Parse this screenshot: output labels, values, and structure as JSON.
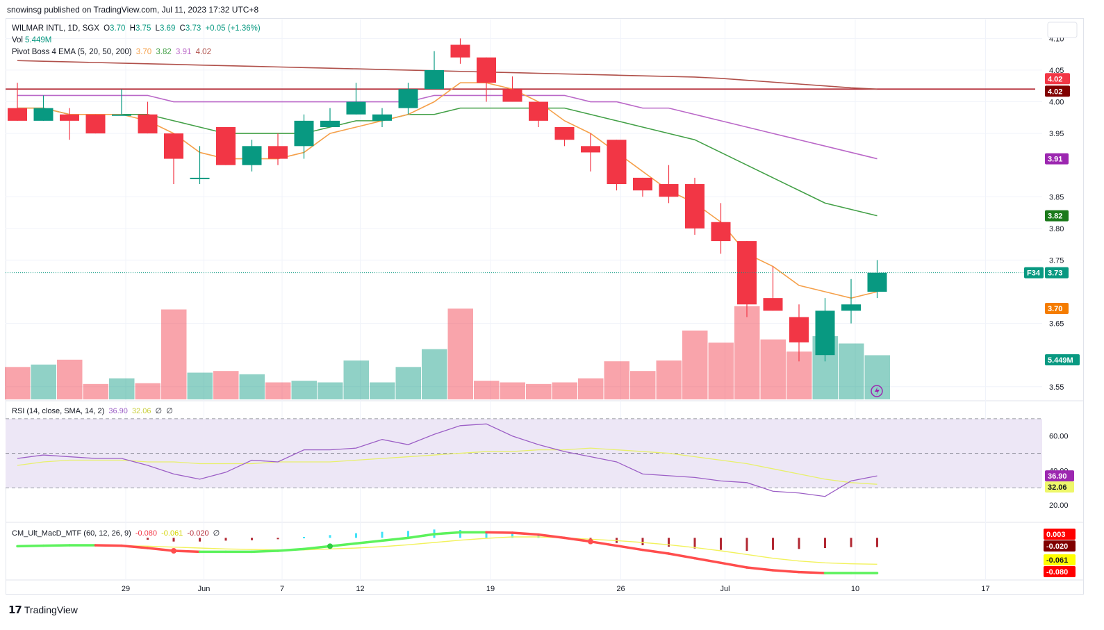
{
  "header": {
    "published": "snowinsg published on TradingView.com, Jul 11, 2023 17:32 UTC+8"
  },
  "legend": {
    "symbol": "WILMAR INTL, 1D, SGX",
    "o_label": "O",
    "o": "3.70",
    "h_label": "H",
    "h": "3.75",
    "l_label": "L",
    "l": "3.69",
    "c_label": "C",
    "c": "3.73",
    "change": "+0.05 (+1.36%)",
    "vol_label": "Vol",
    "vol": "5.449M",
    "ema_label": "Pivot Boss 4 EMA (5, 20, 50, 200)",
    "ema5": "3.70",
    "ema20": "3.82",
    "ema50": "3.91",
    "ema200": "4.02",
    "rsi_label": "RSI (14, close, SMA, 14, 2)",
    "rsi": "36.90",
    "rsi_ma": "32.06",
    "rsi_x1": "∅",
    "rsi_x2": "∅",
    "macd_label": "CM_Ult_MacD_MTF (60, 12, 26, 9)",
    "macd1": "-0.080",
    "macd2": "-0.061",
    "macd3": "-0.020",
    "macd_x": "∅"
  },
  "brand": {
    "name": "TradingView"
  },
  "colors": {
    "up": "#089981",
    "down": "#f23645",
    "ema5": "#f5a04a",
    "ema20": "#43a047",
    "ema50": "#ba68c8",
    "ema200": "#b0504a",
    "resistance": "#b22833",
    "rsi": "#9c5fc6",
    "rsi_ma": "#e8f06c",
    "rsi_band": "#ede7f6",
    "macd_up": "#5cf25c",
    "macd_down": "#ff4d4d",
    "macd_signal": "#f2f25c"
  },
  "chart_data": {
    "type": "candlestick",
    "price_ylim": [
      3.53,
      4.13
    ],
    "price_ticks": [
      "4.10",
      "4.05",
      "4.00",
      "3.95",
      "3.85",
      "3.80",
      "3.75",
      "3.65",
      "3.55"
    ],
    "x_ticks": [
      {
        "label": "29",
        "i": 4
      },
      {
        "label": "Jun",
        "i": 7
      },
      {
        "label": "7",
        "i": 10
      },
      {
        "label": "12",
        "i": 13
      },
      {
        "label": "19",
        "i": 18
      },
      {
        "label": "26",
        "i": 23
      },
      {
        "label": "Jul",
        "i": 27
      },
      {
        "label": "10",
        "i": 32
      },
      {
        "label": "17",
        "i": 37
      }
    ],
    "ohlc": [
      [
        3.99,
        4.03,
        3.97,
        3.97
      ],
      [
        3.97,
        4.01,
        3.97,
        3.99
      ],
      [
        3.98,
        3.99,
        3.94,
        3.97
      ],
      [
        3.98,
        3.98,
        3.95,
        3.95
      ],
      [
        3.98,
        4.02,
        3.98,
        3.98
      ],
      [
        3.98,
        4.0,
        3.95,
        3.95
      ],
      [
        3.95,
        3.95,
        3.87,
        3.91
      ],
      [
        3.88,
        3.93,
        3.87,
        3.88
      ],
      [
        3.96,
        3.96,
        3.9,
        3.9
      ],
      [
        3.9,
        3.94,
        3.89,
        3.93
      ],
      [
        3.93,
        3.95,
        3.9,
        3.91
      ],
      [
        3.93,
        3.98,
        3.91,
        3.97
      ],
      [
        3.96,
        3.99,
        3.96,
        3.97
      ],
      [
        3.98,
        4.03,
        3.98,
        4.0
      ],
      [
        3.97,
        3.99,
        3.96,
        3.98
      ],
      [
        3.99,
        4.03,
        3.98,
        4.02
      ],
      [
        4.02,
        4.08,
        4.02,
        4.05
      ],
      [
        4.09,
        4.1,
        4.06,
        4.07
      ],
      [
        4.07,
        4.07,
        4.0,
        4.03
      ],
      [
        4.02,
        4.04,
        4.0,
        4.0
      ],
      [
        4.0,
        4.0,
        3.96,
        3.97
      ],
      [
        3.96,
        3.96,
        3.93,
        3.94
      ],
      [
        3.93,
        3.95,
        3.89,
        3.92
      ],
      [
        3.94,
        3.94,
        3.86,
        3.87
      ],
      [
        3.88,
        3.88,
        3.85,
        3.86
      ],
      [
        3.87,
        3.9,
        3.84,
        3.85
      ],
      [
        3.87,
        3.88,
        3.79,
        3.8
      ],
      [
        3.81,
        3.84,
        3.76,
        3.78
      ],
      [
        3.78,
        3.78,
        3.66,
        3.68
      ],
      [
        3.69,
        3.74,
        3.67,
        3.67
      ],
      [
        3.66,
        3.68,
        3.59,
        3.62
      ],
      [
        3.6,
        3.69,
        3.59,
        3.67
      ],
      [
        3.67,
        3.72,
        3.65,
        3.68
      ],
      [
        3.7,
        3.75,
        3.69,
        3.73
      ]
    ],
    "volume_millions": [
      4.0,
      4.3,
      4.9,
      1.9,
      2.6,
      2.0,
      11.1,
      3.3,
      3.5,
      3.1,
      2.1,
      2.3,
      2.1,
      4.8,
      2.1,
      4.0,
      6.2,
      11.2,
      2.3,
      2.1,
      1.9,
      2.1,
      2.6,
      4.7,
      3.5,
      4.8,
      8.5,
      7.0,
      11.5,
      7.4,
      5.9,
      7.8,
      6.9,
      5.449
    ],
    "volume_max_millions": 12.0,
    "ema5": [
      3.99,
      3.99,
      3.98,
      3.98,
      3.98,
      3.97,
      3.95,
      3.92,
      3.91,
      3.91,
      3.91,
      3.92,
      3.95,
      3.96,
      3.97,
      3.98,
      4.0,
      4.03,
      4.03,
      4.02,
      4.0,
      3.97,
      3.95,
      3.92,
      3.89,
      3.86,
      3.84,
      3.81,
      3.76,
      3.74,
      3.71,
      3.7,
      3.69,
      3.7
    ],
    "ema20": [
      3.99,
      3.99,
      3.98,
      3.98,
      3.98,
      3.98,
      3.97,
      3.96,
      3.95,
      3.95,
      3.95,
      3.95,
      3.96,
      3.97,
      3.97,
      3.98,
      3.98,
      3.99,
      3.99,
      3.99,
      3.99,
      3.99,
      3.98,
      3.97,
      3.96,
      3.95,
      3.94,
      3.92,
      3.9,
      3.88,
      3.86,
      3.84,
      3.83,
      3.82
    ],
    "ema50": [
      4.01,
      4.01,
      4.01,
      4.01,
      4.01,
      4.01,
      4.0,
      4.0,
      4.0,
      4.0,
      4.0,
      4.0,
      4.0,
      4.0,
      4.0,
      4.0,
      4.01,
      4.01,
      4.01,
      4.01,
      4.01,
      4.01,
      4.0,
      4.0,
      3.99,
      3.99,
      3.98,
      3.97,
      3.96,
      3.95,
      3.94,
      3.93,
      3.92,
      3.91
    ],
    "ema200": [
      4.065,
      4.064,
      4.063,
      4.062,
      4.061,
      4.06,
      4.059,
      4.058,
      4.057,
      4.056,
      4.055,
      4.054,
      4.053,
      4.052,
      4.051,
      4.05,
      4.049,
      4.048,
      4.047,
      4.046,
      4.045,
      4.044,
      4.043,
      4.042,
      4.041,
      4.04,
      4.039,
      4.037,
      4.034,
      4.031,
      4.028,
      4.025,
      4.022,
      4.02
    ],
    "resistance": 4.02,
    "rsi_ylim": [
      10,
      80
    ],
    "rsi_ticks": [
      "60.00",
      "40.00",
      "20.00"
    ],
    "rsi_band": [
      30,
      70
    ],
    "rsi_mid": 50,
    "rsi": [
      47,
      49,
      48,
      47,
      47,
      43,
      38,
      35,
      39,
      46,
      45,
      52,
      52,
      53,
      58,
      55,
      61,
      66,
      67,
      60,
      55,
      51,
      48,
      45,
      38,
      37,
      36,
      34,
      33,
      28,
      27,
      25,
      34,
      36.9
    ],
    "rsi_ma": [
      43,
      45,
      46,
      46,
      46,
      45,
      45,
      44,
      44,
      44,
      45,
      45,
      45,
      46,
      47,
      48,
      49,
      50,
      51,
      51,
      52,
      52,
      53,
      52,
      51,
      50,
      48,
      46,
      44,
      41,
      38,
      35,
      33,
      32.06
    ],
    "macd": [
      -0.022,
      -0.021,
      -0.02,
      -0.02,
      -0.021,
      -0.026,
      -0.032,
      -0.034,
      -0.034,
      -0.034,
      -0.032,
      -0.028,
      -0.022,
      -0.016,
      -0.01,
      -0.004,
      0.004,
      0.008,
      0.008,
      0.007,
      0.003,
      -0.004,
      -0.012,
      -0.021,
      -0.03,
      -0.038,
      -0.048,
      -0.058,
      -0.068,
      -0.074,
      -0.078,
      -0.08,
      -0.08,
      -0.08
    ],
    "macd_signal": [
      -0.022,
      -0.022,
      -0.021,
      -0.021,
      -0.021,
      -0.022,
      -0.024,
      -0.026,
      -0.028,
      -0.029,
      -0.03,
      -0.03,
      -0.028,
      -0.026,
      -0.023,
      -0.019,
      -0.014,
      -0.009,
      -0.005,
      -0.002,
      -0.002,
      -0.004,
      -0.007,
      -0.01,
      -0.014,
      -0.019,
      -0.025,
      -0.032,
      -0.04,
      -0.048,
      -0.054,
      -0.058,
      -0.06,
      -0.061
    ],
    "macd_hist": [
      0.0,
      0.0,
      0.0,
      0.0,
      0.0,
      -0.004,
      -0.008,
      -0.008,
      -0.006,
      -0.005,
      -0.002,
      0.002,
      0.006,
      0.01,
      0.013,
      0.015,
      0.018,
      0.017,
      0.013,
      0.009,
      0.005,
      0.0,
      -0.005,
      -0.011,
      -0.016,
      -0.019,
      -0.023,
      -0.026,
      -0.028,
      -0.026,
      -0.024,
      -0.022,
      -0.02,
      -0.02
    ],
    "macd_ylim": [
      -0.095,
      0.025
    ],
    "macd_labels": [
      "0.003",
      "-0.020",
      "-0.061",
      "-0.080"
    ],
    "last_price_label": "F34",
    "last_price": "3.73",
    "vol_label": "5.449M"
  }
}
